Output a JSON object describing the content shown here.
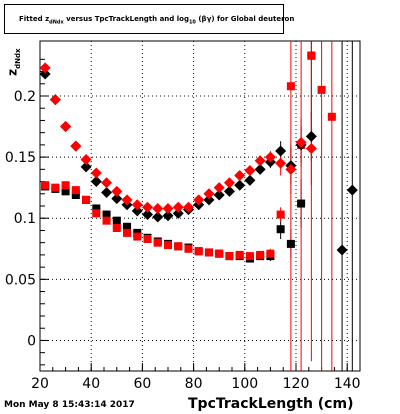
{
  "title": {
    "prefix": "Fitted",
    "z_sym": "z",
    "z_sub": "dNdx",
    "mid": "versus TpcTrackLength and log",
    "log_sub": "10",
    "suffix": "(βγ) for Global deuteron"
  },
  "footer": "Mon May  8 15:43:14 2017",
  "chart_data": {
    "type": "scatter",
    "title": "Fitted z_dNdx versus TpcTrackLength and log_10(βγ) for Global deuteron",
    "xlabel": "TpcTrackLength (cm)",
    "ylabel_main": "z",
    "ylabel_sub": "dNdx",
    "xlim": [
      20,
      145
    ],
    "ylim": [
      -0.025,
      0.245
    ],
    "xticks": [
      20,
      40,
      60,
      80,
      100,
      120,
      140
    ],
    "yticks": [
      0,
      0.05,
      0.1,
      0.15,
      0.2
    ],
    "ytick_labels": [
      "0",
      "0.05",
      "0.1",
      "0.15",
      "0.2"
    ],
    "grid": true,
    "series": [
      {
        "marker": "square",
        "color": "#000000",
        "points": [
          {
            "x": 22,
            "y": 0.126,
            "err": 0.002
          },
          {
            "x": 26,
            "y": 0.124,
            "err": 0.002
          },
          {
            "x": 30,
            "y": 0.122,
            "err": 0.002
          },
          {
            "x": 34,
            "y": 0.119,
            "err": 0.002
          },
          {
            "x": 38,
            "y": 0.115,
            "err": 0.002
          },
          {
            "x": 42,
            "y": 0.108,
            "err": 0.002
          },
          {
            "x": 46,
            "y": 0.103,
            "err": 0.002
          },
          {
            "x": 50,
            "y": 0.098,
            "err": 0.002
          },
          {
            "x": 54,
            "y": 0.093,
            "err": 0.002
          },
          {
            "x": 58,
            "y": 0.088,
            "err": 0.002
          },
          {
            "x": 62,
            "y": 0.084,
            "err": 0.002
          },
          {
            "x": 66,
            "y": 0.081,
            "err": 0.002
          },
          {
            "x": 70,
            "y": 0.079,
            "err": 0.002
          },
          {
            "x": 74,
            "y": 0.077,
            "err": 0.002
          },
          {
            "x": 78,
            "y": 0.076,
            "err": 0.002
          },
          {
            "x": 82,
            "y": 0.073,
            "err": 0.002
          },
          {
            "x": 86,
            "y": 0.072,
            "err": 0.002
          },
          {
            "x": 90,
            "y": 0.071,
            "err": 0.002
          },
          {
            "x": 94,
            "y": 0.069,
            "err": 0.002
          },
          {
            "x": 98,
            "y": 0.069,
            "err": 0.002
          },
          {
            "x": 102,
            "y": 0.067,
            "err": 0.003
          },
          {
            "x": 106,
            "y": 0.069,
            "err": 0.003
          },
          {
            "x": 110,
            "y": 0.069,
            "err": 0.004
          },
          {
            "x": 114,
            "y": 0.091,
            "err": 0.008
          },
          {
            "x": 118,
            "y": 0.079,
            "err": 0.012
          },
          {
            "x": 122,
            "y": 0.112,
            "err": 0.02
          },
          {
            "x": 126,
            "y": 0.233,
            "err": 0.05
          }
        ]
      },
      {
        "marker": "square",
        "color": "#ff0000",
        "points": [
          {
            "x": 22,
            "y": 0.127,
            "err": 0.002
          },
          {
            "x": 26,
            "y": 0.125,
            "err": 0.002
          },
          {
            "x": 30,
            "y": 0.127,
            "err": 0.002
          },
          {
            "x": 34,
            "y": 0.123,
            "err": 0.002
          },
          {
            "x": 38,
            "y": 0.115,
            "err": 0.002
          },
          {
            "x": 42,
            "y": 0.104,
            "err": 0.002
          },
          {
            "x": 46,
            "y": 0.098,
            "err": 0.002
          },
          {
            "x": 50,
            "y": 0.092,
            "err": 0.002
          },
          {
            "x": 54,
            "y": 0.088,
            "err": 0.002
          },
          {
            "x": 58,
            "y": 0.085,
            "err": 0.002
          },
          {
            "x": 62,
            "y": 0.083,
            "err": 0.002
          },
          {
            "x": 66,
            "y": 0.08,
            "err": 0.002
          },
          {
            "x": 70,
            "y": 0.078,
            "err": 0.002
          },
          {
            "x": 74,
            "y": 0.077,
            "err": 0.002
          },
          {
            "x": 78,
            "y": 0.075,
            "err": 0.002
          },
          {
            "x": 82,
            "y": 0.073,
            "err": 0.002
          },
          {
            "x": 86,
            "y": 0.072,
            "err": 0.002
          },
          {
            "x": 90,
            "y": 0.071,
            "err": 0.002
          },
          {
            "x": 94,
            "y": 0.069,
            "err": 0.002
          },
          {
            "x": 98,
            "y": 0.07,
            "err": 0.002
          },
          {
            "x": 102,
            "y": 0.069,
            "err": 0.003
          },
          {
            "x": 106,
            "y": 0.07,
            "err": 0.003
          },
          {
            "x": 110,
            "y": 0.071,
            "err": 0.004
          },
          {
            "x": 114,
            "y": 0.103,
            "err": 0.006
          },
          {
            "x": 118,
            "y": 0.208,
            "err": 0.25
          },
          {
            "x": 122,
            "y": 0.16,
            "err": 0.25
          },
          {
            "x": 126,
            "y": 0.233,
            "err": 0.25
          },
          {
            "x": 130,
            "y": 0.205,
            "err": 0.25
          },
          {
            "x": 134,
            "y": 0.183,
            "err": 0.25
          }
        ]
      },
      {
        "marker": "diamond",
        "color": "#000000",
        "points": [
          {
            "x": 22,
            "y": 0.218,
            "err": 0.002
          },
          {
            "x": 26,
            "y": 0.197,
            "err": 0.002
          },
          {
            "x": 30,
            "y": 0.175,
            "err": 0.002
          },
          {
            "x": 34,
            "y": 0.159,
            "err": 0.002
          },
          {
            "x": 38,
            "y": 0.142,
            "err": 0.002
          },
          {
            "x": 42,
            "y": 0.13,
            "err": 0.002
          },
          {
            "x": 46,
            "y": 0.121,
            "err": 0.002
          },
          {
            "x": 50,
            "y": 0.116,
            "err": 0.002
          },
          {
            "x": 54,
            "y": 0.111,
            "err": 0.002
          },
          {
            "x": 58,
            "y": 0.106,
            "err": 0.002
          },
          {
            "x": 62,
            "y": 0.103,
            "err": 0.002
          },
          {
            "x": 66,
            "y": 0.101,
            "err": 0.002
          },
          {
            "x": 70,
            "y": 0.102,
            "err": 0.002
          },
          {
            "x": 74,
            "y": 0.104,
            "err": 0.002
          },
          {
            "x": 78,
            "y": 0.107,
            "err": 0.002
          },
          {
            "x": 82,
            "y": 0.111,
            "err": 0.002
          },
          {
            "x": 86,
            "y": 0.115,
            "err": 0.002
          },
          {
            "x": 90,
            "y": 0.119,
            "err": 0.002
          },
          {
            "x": 94,
            "y": 0.122,
            "err": 0.002
          },
          {
            "x": 98,
            "y": 0.127,
            "err": 0.003
          },
          {
            "x": 102,
            "y": 0.131,
            "err": 0.003
          },
          {
            "x": 106,
            "y": 0.14,
            "err": 0.004
          },
          {
            "x": 110,
            "y": 0.146,
            "err": 0.005
          },
          {
            "x": 114,
            "y": 0.155,
            "err": 0.008
          },
          {
            "x": 118,
            "y": 0.143,
            "err": 0.015
          },
          {
            "x": 122,
            "y": 0.16,
            "err": 0.015
          },
          {
            "x": 126,
            "y": 0.167,
            "err": 0.02
          },
          {
            "x": 138,
            "y": 0.074,
            "err": 0.25
          },
          {
            "x": 142,
            "y": 0.123,
            "err": 0.25
          }
        ]
      },
      {
        "marker": "diamond",
        "color": "#ff0000",
        "points": [
          {
            "x": 22,
            "y": 0.223,
            "err": 0.002
          },
          {
            "x": 26,
            "y": 0.197,
            "err": 0.002
          },
          {
            "x": 30,
            "y": 0.175,
            "err": 0.002
          },
          {
            "x": 34,
            "y": 0.159,
            "err": 0.002
          },
          {
            "x": 38,
            "y": 0.148,
            "err": 0.002
          },
          {
            "x": 42,
            "y": 0.137,
            "err": 0.002
          },
          {
            "x": 46,
            "y": 0.129,
            "err": 0.002
          },
          {
            "x": 50,
            "y": 0.122,
            "err": 0.002
          },
          {
            "x": 54,
            "y": 0.115,
            "err": 0.002
          },
          {
            "x": 58,
            "y": 0.111,
            "err": 0.002
          },
          {
            "x": 62,
            "y": 0.109,
            "err": 0.002
          },
          {
            "x": 66,
            "y": 0.108,
            "err": 0.002
          },
          {
            "x": 70,
            "y": 0.108,
            "err": 0.002
          },
          {
            "x": 74,
            "y": 0.109,
            "err": 0.002
          },
          {
            "x": 78,
            "y": 0.109,
            "err": 0.002
          },
          {
            "x": 82,
            "y": 0.115,
            "err": 0.002
          },
          {
            "x": 86,
            "y": 0.12,
            "err": 0.002
          },
          {
            "x": 90,
            "y": 0.125,
            "err": 0.002
          },
          {
            "x": 94,
            "y": 0.129,
            "err": 0.002
          },
          {
            "x": 98,
            "y": 0.135,
            "err": 0.003
          },
          {
            "x": 102,
            "y": 0.139,
            "err": 0.003
          },
          {
            "x": 106,
            "y": 0.147,
            "err": 0.004
          },
          {
            "x": 110,
            "y": 0.15,
            "err": 0.005
          },
          {
            "x": 114,
            "y": 0.145,
            "err": 0.01
          },
          {
            "x": 118,
            "y": 0.14,
            "err": 0.02
          },
          {
            "x": 122,
            "y": 0.162,
            "err": 0.02
          },
          {
            "x": 126,
            "y": 0.157,
            "err": 0.03
          }
        ]
      }
    ]
  }
}
